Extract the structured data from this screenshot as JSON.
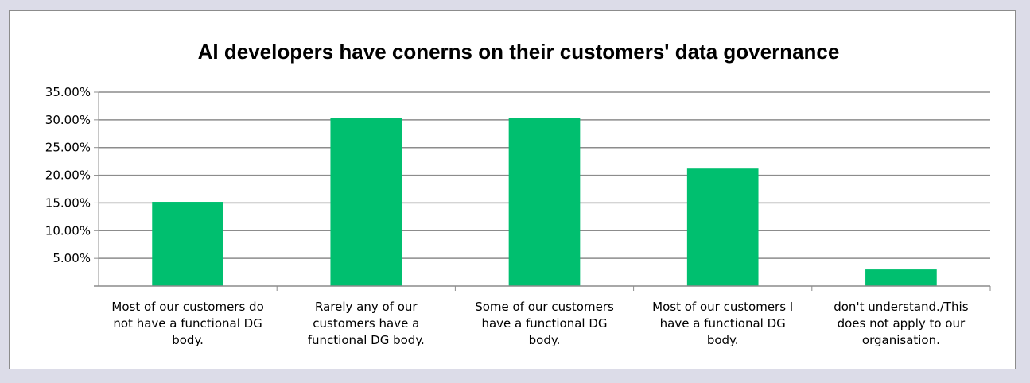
{
  "chart_data": {
    "type": "bar",
    "title": "AI developers have conerns on their customers' data governance",
    "categories": [
      [
        "Most of our customers do",
        "not have a functional DG",
        "body."
      ],
      [
        "Rarely any of our",
        "customers have a",
        "functional DG body."
      ],
      [
        "Some of our customers",
        "have a functional DG",
        "body."
      ],
      [
        "Most of our customers I",
        "have a functional DG",
        "body."
      ],
      [
        "don't understand./This",
        "does not apply to our",
        "organisation."
      ]
    ],
    "values": [
      0.152,
      0.303,
      0.303,
      0.212,
      0.03
    ],
    "ylim": [
      0,
      0.35
    ],
    "yticks": [
      0.05,
      0.1,
      0.15,
      0.2,
      0.25,
      0.3,
      0.35
    ],
    "ytick_labels": [
      "5.00%",
      "10.00%",
      "15.00%",
      "20.00%",
      "25.00%",
      "30.00%",
      "35.00%"
    ],
    "grid": true,
    "legend": "none",
    "colors": {
      "bar": "#00bf6f",
      "grid": "#8c8c8c",
      "axis": "#8c8c8c",
      "page_background": "#dcdce8",
      "plot_background": "#ffffff"
    }
  }
}
